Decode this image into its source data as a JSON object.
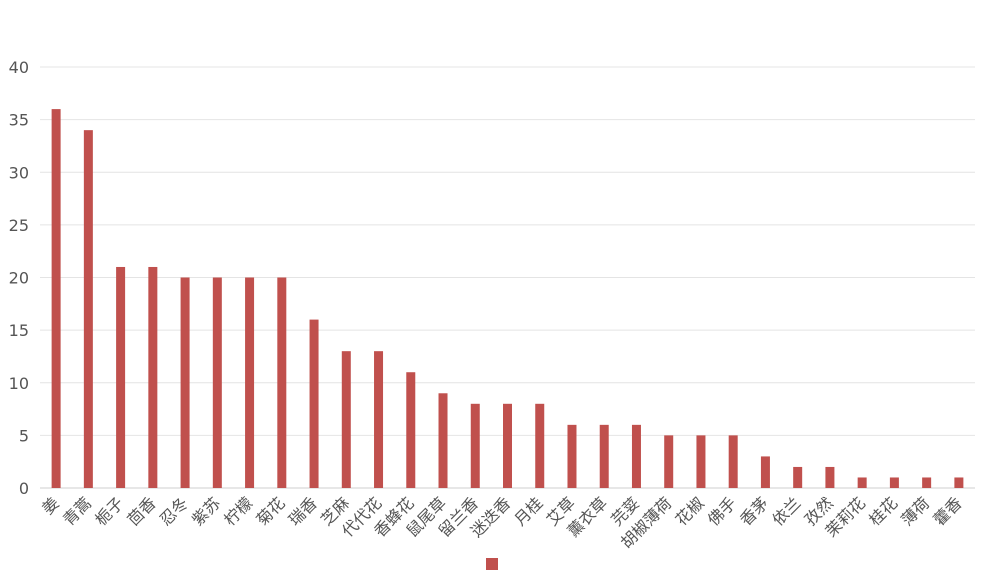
{
  "chart_data": {
    "type": "bar",
    "title": "",
    "xlabel": "",
    "ylabel": "",
    "ylim": [
      0,
      40
    ],
    "yticks": [
      0,
      5,
      10,
      15,
      20,
      25,
      30,
      35,
      40
    ],
    "grid": true,
    "legend": {
      "placement": "bottom",
      "entries": [
        {
          "name": "",
          "color": "#c0504d"
        }
      ]
    },
    "categories": [
      "姜",
      "青蒿",
      "栀子",
      "茴香",
      "忍冬",
      "紫苏",
      "柠檬",
      "菊花",
      "瑞香",
      "芝麻",
      "代代花",
      "香蜂花",
      "鼠尾草",
      "留兰香",
      "迷迭香",
      "月桂",
      "艾草",
      "薰衣草",
      "芫荽",
      "胡椒薄荷",
      "花椒",
      "佛手",
      "香茅",
      "依兰",
      "孜然",
      "茉莉花",
      "桂花",
      "薄荷",
      "藿香"
    ],
    "series": [
      {
        "name": "",
        "color": "#c0504d",
        "values": [
          36,
          34,
          21,
          21,
          20,
          20,
          20,
          20,
          16,
          13,
          13,
          11,
          9,
          8,
          8,
          8,
          6,
          6,
          6,
          5,
          5,
          5,
          3,
          2,
          2,
          1,
          1,
          1,
          1
        ]
      }
    ]
  }
}
